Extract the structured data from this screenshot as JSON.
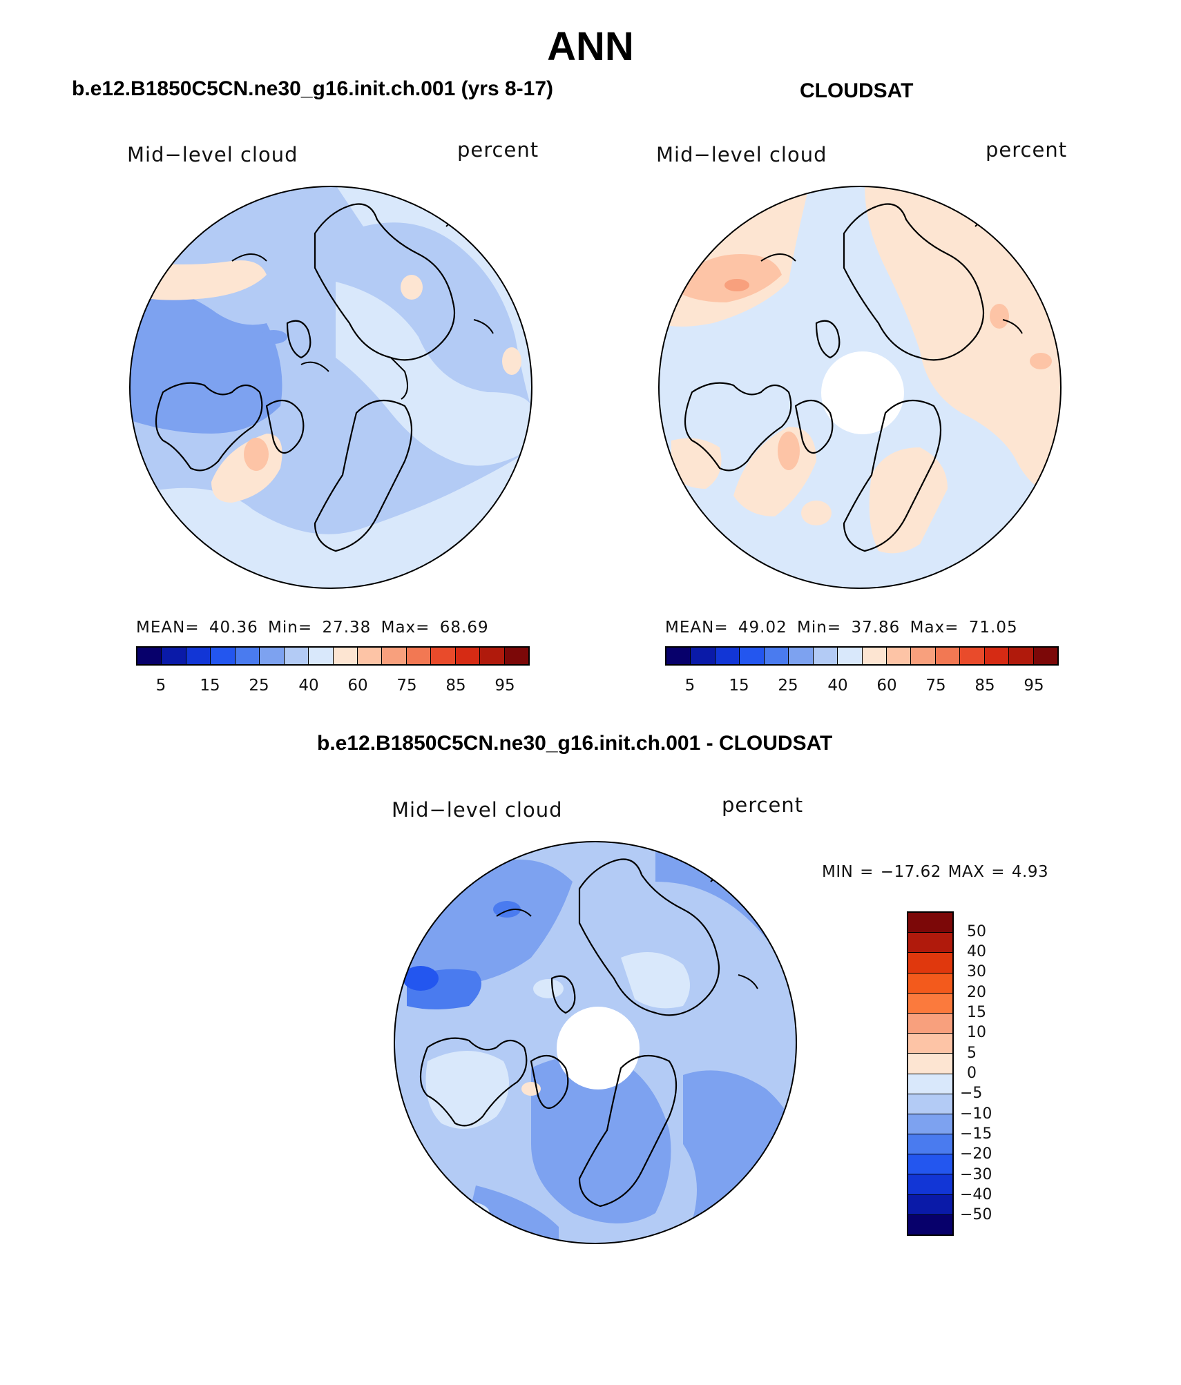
{
  "figure": {
    "title": "ANN",
    "panels": [
      {
        "subtitle": "b.e12.B1850C5CN.ne30_g16.init.ch.001 (yrs 8-17)",
        "variable": "Mid−level cloud",
        "units": "percent",
        "stats": "MEAN=   40.36   Min=   27.38   Max=   68.69"
      },
      {
        "subtitle": "CLOUDSAT",
        "variable": "Mid−level cloud",
        "units": "percent",
        "stats": "MEAN=   49.02   Min=   37.86   Max=   71.05"
      },
      {
        "subtitle": "b.e12.B1850C5CN.ne30_g16.init.ch.001 - CLOUDSAT",
        "variable": "Mid−level cloud",
        "units": "percent",
        "stats": "MIN = −17.62 MAX =    4.93"
      }
    ],
    "abs_colorbar": {
      "labels": [
        "5",
        "15",
        "25",
        "40",
        "60",
        "75",
        "85",
        "95"
      ],
      "colors": [
        "#07006b",
        "#0a1aa8",
        "#1236d6",
        "#2356ef",
        "#4a7bef",
        "#7da2f0",
        "#b3cbf5",
        "#d9e8fb",
        "#fde5d2",
        "#fdc4a6",
        "#f8a07d",
        "#f27853",
        "#e94b2b",
        "#d62b14",
        "#b01a0c",
        "#7c0808"
      ]
    },
    "diff_colorbar": {
      "labels": [
        "50",
        "40",
        "30",
        "20",
        "15",
        "10",
        "5",
        "0",
        "−5",
        "−10",
        "−15",
        "−20",
        "−30",
        "−40",
        "−50"
      ],
      "colors": [
        "#7c0808",
        "#b01a0c",
        "#e0380d",
        "#f35a1c",
        "#fb7a3d",
        "#f8a07d",
        "#fdc4a6",
        "#fde5d2",
        "#d9e8fb",
        "#b3cbf5",
        "#7da2f0",
        "#4a7bef",
        "#2356ef",
        "#1236d6",
        "#0a1aa8",
        "#07006b"
      ]
    },
    "map_colors": {
      "ocean_light": "#d9e8fb",
      "mid_blue": "#b3cbf5",
      "blue": "#7da2f0",
      "deep_blue": "#4a7bef",
      "peach": "#fde5d2",
      "salmon": "#fdc4a6"
    }
  }
}
